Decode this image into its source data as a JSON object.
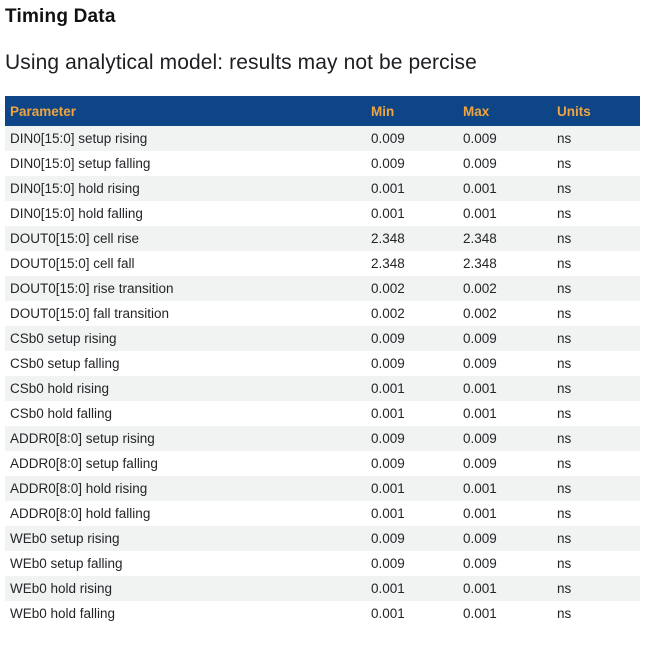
{
  "page": {
    "title": "Timing Data",
    "subtitle": "Using analytical model: results may not be percise"
  },
  "table": {
    "columns": [
      "Parameter",
      "Min",
      "Max",
      "Units"
    ],
    "rows": [
      [
        "DIN0[15:0] setup rising",
        "0.009",
        "0.009",
        "ns"
      ],
      [
        "DIN0[15:0] setup falling",
        "0.009",
        "0.009",
        "ns"
      ],
      [
        "DIN0[15:0] hold rising",
        "0.001",
        "0.001",
        "ns"
      ],
      [
        "DIN0[15:0] hold falling",
        "0.001",
        "0.001",
        "ns"
      ],
      [
        "DOUT0[15:0] cell rise",
        "2.348",
        "2.348",
        "ns"
      ],
      [
        "DOUT0[15:0] cell fall",
        "2.348",
        "2.348",
        "ns"
      ],
      [
        "DOUT0[15:0] rise transition",
        "0.002",
        "0.002",
        "ns"
      ],
      [
        "DOUT0[15:0] fall transition",
        "0.002",
        "0.002",
        "ns"
      ],
      [
        "CSb0 setup rising",
        "0.009",
        "0.009",
        "ns"
      ],
      [
        "CSb0 setup falling",
        "0.009",
        "0.009",
        "ns"
      ],
      [
        "CSb0 hold rising",
        "0.001",
        "0.001",
        "ns"
      ],
      [
        "CSb0 hold falling",
        "0.001",
        "0.001",
        "ns"
      ],
      [
        "ADDR0[8:0] setup rising",
        "0.009",
        "0.009",
        "ns"
      ],
      [
        "ADDR0[8:0] setup falling",
        "0.009",
        "0.009",
        "ns"
      ],
      [
        "ADDR0[8:0] hold rising",
        "0.001",
        "0.001",
        "ns"
      ],
      [
        "ADDR0[8:0] hold falling",
        "0.001",
        "0.001",
        "ns"
      ],
      [
        "WEb0 setup rising",
        "0.009",
        "0.009",
        "ns"
      ],
      [
        "WEb0 setup falling",
        "0.009",
        "0.009",
        "ns"
      ],
      [
        "WEb0 hold rising",
        "0.001",
        "0.001",
        "ns"
      ],
      [
        "WEb0 hold falling",
        "0.001",
        "0.001",
        "ns"
      ]
    ]
  },
  "colors": {
    "header_bg": "#0d4586",
    "header_text": "#efa440",
    "row_alt_bg": "#f1f2f2",
    "body_text": "#232528"
  }
}
